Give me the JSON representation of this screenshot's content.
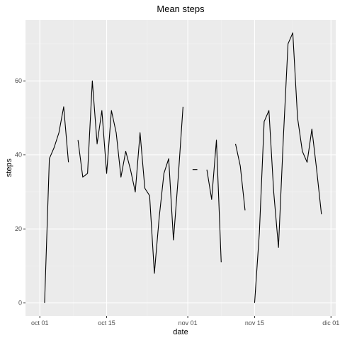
{
  "chart_data": {
    "type": "line",
    "title": "Mean steps",
    "xlabel": "date",
    "ylabel": "steps",
    "xlim": [
      "2012-09-28",
      "2012-12-02"
    ],
    "ylim": [
      -3.5,
      76.5
    ],
    "x_ticks": [
      {
        "date": "2012-10-01",
        "label": "oct 01"
      },
      {
        "date": "2012-10-15",
        "label": "oct 15"
      },
      {
        "date": "2012-11-01",
        "label": "nov 01"
      },
      {
        "date": "2012-11-15",
        "label": "nov 15"
      },
      {
        "date": "2012-12-01",
        "label": "dic 01"
      }
    ],
    "y_ticks": [
      0,
      20,
      40,
      60
    ],
    "grid": true,
    "series": [
      {
        "values": [
          {
            "date": "2012-10-02",
            "steps": 0
          },
          {
            "date": "2012-10-03",
            "steps": 39
          },
          {
            "date": "2012-10-04",
            "steps": 42
          },
          {
            "date": "2012-10-05",
            "steps": 46
          },
          {
            "date": "2012-10-06",
            "steps": 53
          },
          {
            "date": "2012-10-07",
            "steps": 38
          },
          {
            "date": "2012-10-08",
            "steps": null
          },
          {
            "date": "2012-10-09",
            "steps": 44
          },
          {
            "date": "2012-10-10",
            "steps": 34
          },
          {
            "date": "2012-10-11",
            "steps": 35
          },
          {
            "date": "2012-10-12",
            "steps": 60
          },
          {
            "date": "2012-10-13",
            "steps": 43
          },
          {
            "date": "2012-10-14",
            "steps": 52
          },
          {
            "date": "2012-10-15",
            "steps": 35
          },
          {
            "date": "2012-10-16",
            "steps": 52
          },
          {
            "date": "2012-10-17",
            "steps": 46
          },
          {
            "date": "2012-10-18",
            "steps": 34
          },
          {
            "date": "2012-10-19",
            "steps": 41
          },
          {
            "date": "2012-10-20",
            "steps": 36
          },
          {
            "date": "2012-10-21",
            "steps": 30
          },
          {
            "date": "2012-10-22",
            "steps": 46
          },
          {
            "date": "2012-10-23",
            "steps": 31
          },
          {
            "date": "2012-10-24",
            "steps": 29
          },
          {
            "date": "2012-10-25",
            "steps": 8
          },
          {
            "date": "2012-10-26",
            "steps": 23
          },
          {
            "date": "2012-10-27",
            "steps": 35
          },
          {
            "date": "2012-10-28",
            "steps": 39
          },
          {
            "date": "2012-10-29",
            "steps": 17
          },
          {
            "date": "2012-10-30",
            "steps": 34
          },
          {
            "date": "2012-10-31",
            "steps": 53
          },
          {
            "date": "2012-11-01",
            "steps": null
          },
          {
            "date": "2012-11-02",
            "steps": 36
          },
          {
            "date": "2012-11-03",
            "steps": 36
          },
          {
            "date": "2012-11-04",
            "steps": null
          },
          {
            "date": "2012-11-05",
            "steps": 36
          },
          {
            "date": "2012-11-06",
            "steps": 28
          },
          {
            "date": "2012-11-07",
            "steps": 44
          },
          {
            "date": "2012-11-08",
            "steps": 11
          },
          {
            "date": "2012-11-09",
            "steps": null
          },
          {
            "date": "2012-11-10",
            "steps": null
          },
          {
            "date": "2012-11-11",
            "steps": 43
          },
          {
            "date": "2012-11-12",
            "steps": 37
          },
          {
            "date": "2012-11-13",
            "steps": 25
          },
          {
            "date": "2012-11-14",
            "steps": null
          },
          {
            "date": "2012-11-15",
            "steps": 0
          },
          {
            "date": "2012-11-16",
            "steps": 19
          },
          {
            "date": "2012-11-17",
            "steps": 49
          },
          {
            "date": "2012-11-18",
            "steps": 52
          },
          {
            "date": "2012-11-19",
            "steps": 30
          },
          {
            "date": "2012-11-20",
            "steps": 15
          },
          {
            "date": "2012-11-21",
            "steps": 44
          },
          {
            "date": "2012-11-22",
            "steps": 70
          },
          {
            "date": "2012-11-23",
            "steps": 73
          },
          {
            "date": "2012-11-24",
            "steps": 50
          },
          {
            "date": "2012-11-25",
            "steps": 41
          },
          {
            "date": "2012-11-26",
            "steps": 38
          },
          {
            "date": "2012-11-27",
            "steps": 47
          },
          {
            "date": "2012-11-28",
            "steps": 36
          },
          {
            "date": "2012-11-29",
            "steps": 24
          },
          {
            "date": "2012-11-30",
            "steps": null
          }
        ]
      }
    ]
  },
  "colors": {
    "panel": "#ebebeb",
    "grid_major": "#ffffff",
    "grid_minor": "#f2f2f2",
    "line": "#000000",
    "tick_label": "#4d4d4d",
    "tick_mark": "#333333"
  }
}
